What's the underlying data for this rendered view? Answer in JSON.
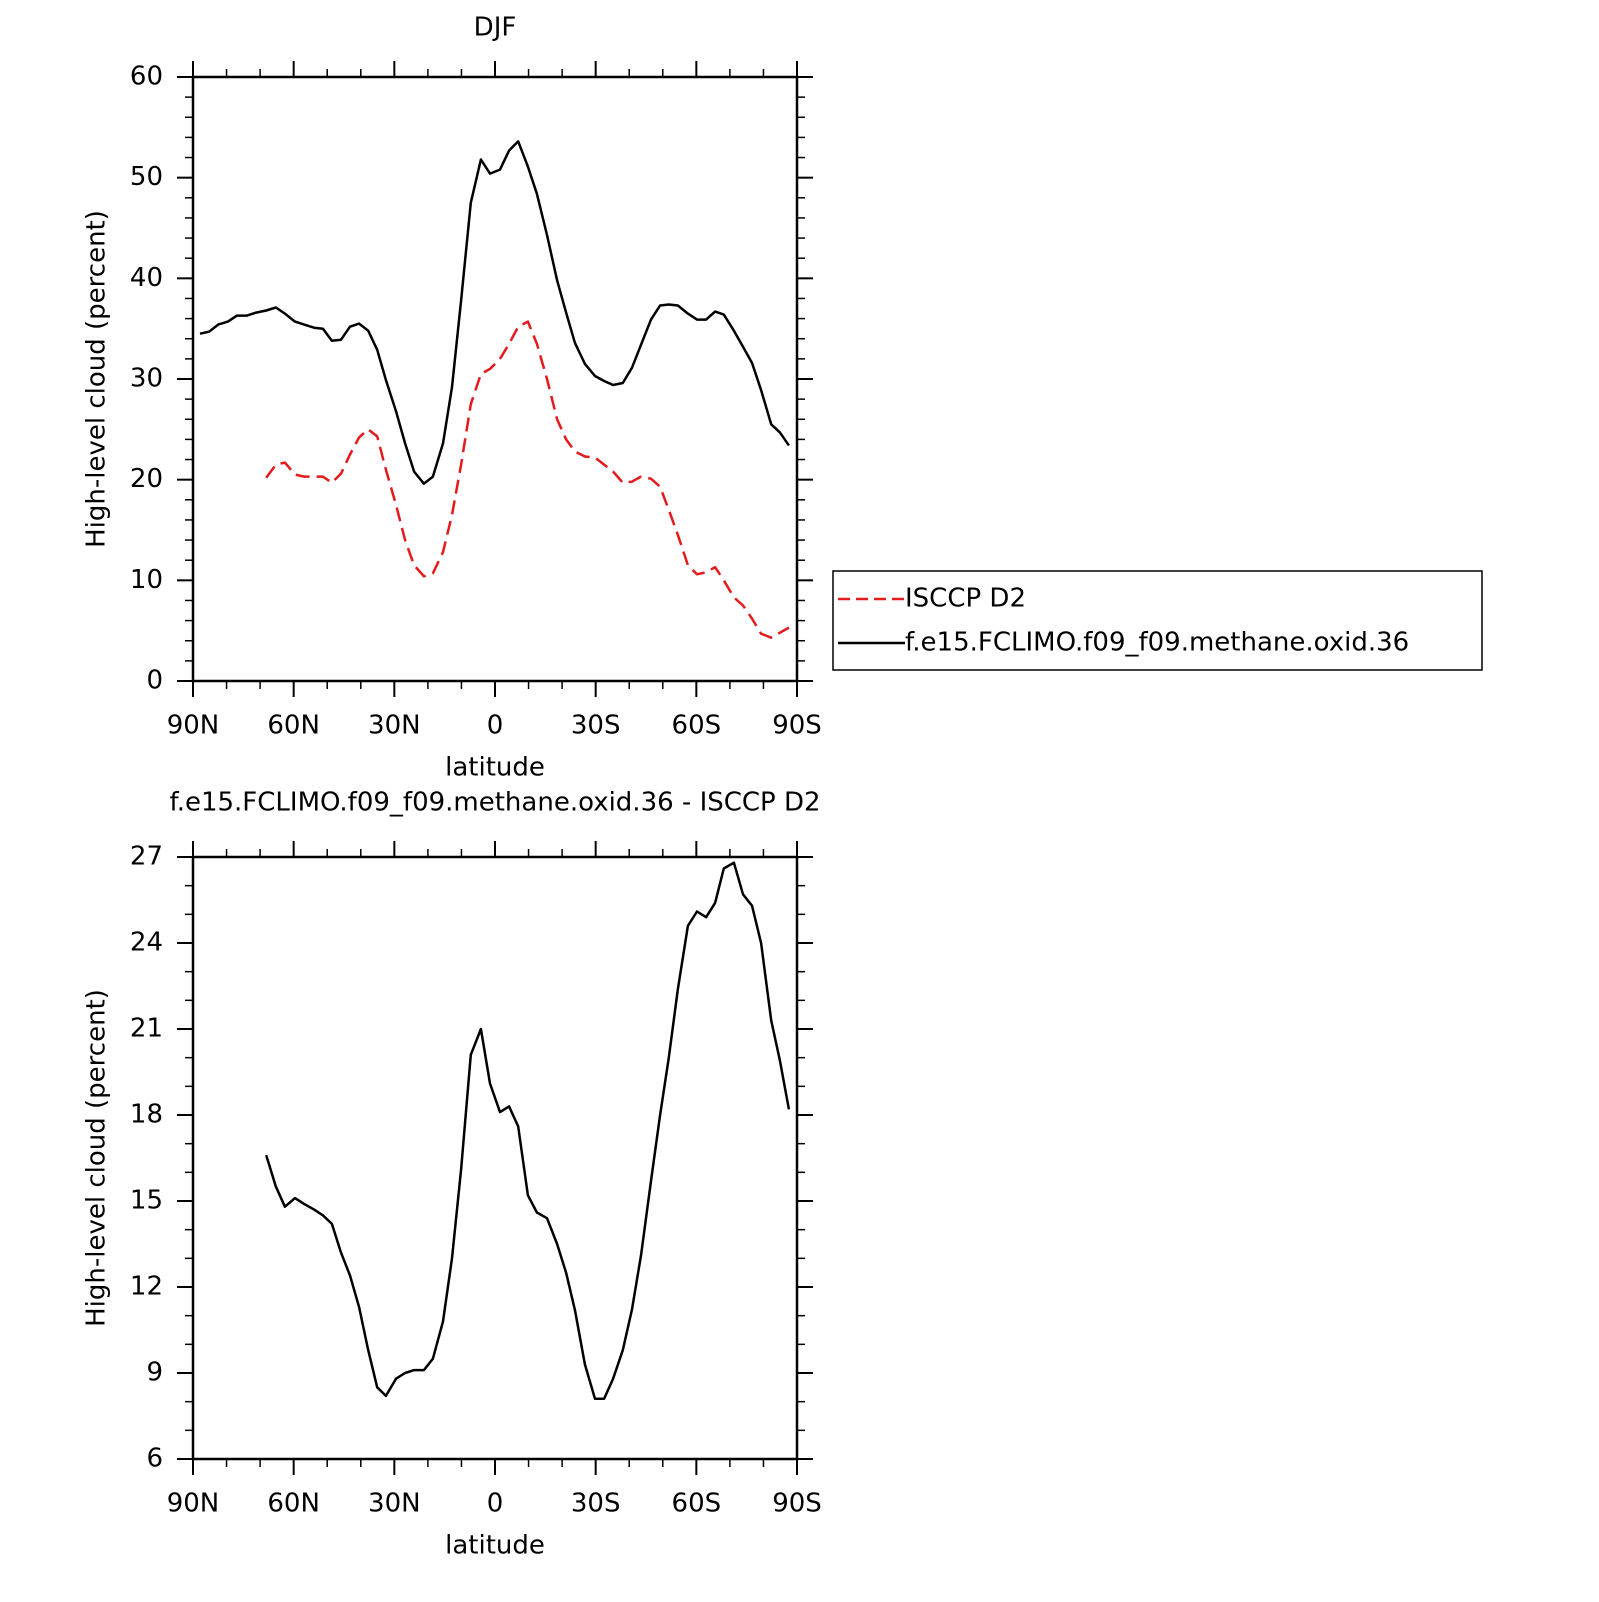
{
  "chart_data": [
    {
      "type": "line",
      "title": "DJF",
      "xlabel": "latitude",
      "ylabel": "High-level cloud (percent)",
      "x": [
        87.9,
        85.2,
        82.5,
        79.6,
        76.9,
        73.9,
        71.2,
        68.2,
        65.3,
        62.6,
        59.6,
        56.9,
        53.9,
        51.3,
        48.6,
        45.9,
        43.2,
        40.5,
        37.8,
        35.1,
        32.5,
        29.5,
        26.8,
        24.1,
        21.2,
        18.5,
        15.5,
        12.8,
        10.1,
        7.2,
        4.2,
        1.5,
        -1.5,
        -4.2,
        -6.9,
        -9.8,
        -12.5,
        -15.5,
        -18.5,
        -21.2,
        -23.8,
        -26.8,
        -29.8,
        -32.5,
        -35.2,
        -38.1,
        -40.8,
        -43.5,
        -46.5,
        -49.2,
        -51.8,
        -54.5,
        -57.5,
        -60.2,
        -62.9,
        -65.6,
        -68.2,
        -71.2,
        -73.9,
        -76.6,
        -79.3,
        -82.3,
        -84.9,
        -87.6
      ],
      "series": [
        {
          "name": "ISCCP D2",
          "color": "#e41a1c",
          "linestyle": "dashed",
          "values": [
            null,
            null,
            null,
            null,
            null,
            null,
            null,
            20.2,
            21.5,
            21.7,
            20.5,
            20.3,
            20.3,
            20.3,
            19.7,
            20.6,
            22.5,
            24.2,
            25.0,
            24.3,
            21.0,
            17.5,
            14.0,
            11.5,
            10.4,
            10.7,
            12.8,
            16.5,
            21.5,
            27.5,
            30.5,
            31.0,
            32.0,
            33.5,
            35.2,
            35.7,
            33.5,
            30.0,
            26.0,
            24.0,
            22.8,
            22.3,
            22.2,
            21.5,
            20.8,
            19.7,
            19.8,
            20.3,
            20.1,
            19.3,
            17.0,
            14.5,
            11.5,
            10.6,
            10.8,
            11.3,
            10.0,
            8.3,
            7.5,
            6.2,
            4.7,
            4.3,
            4.8,
            5.3
          ]
        },
        {
          "name": "f.e15.FCLIMO.f09_f09.methane.oxid.36",
          "color": "#000000",
          "linestyle": "solid",
          "values": [
            34.5,
            34.7,
            35.4,
            35.7,
            36.3,
            36.3,
            36.6,
            36.8,
            37.1,
            36.5,
            35.7,
            35.4,
            35.1,
            35.0,
            33.8,
            33.9,
            35.2,
            35.5,
            34.8,
            32.9,
            29.9,
            26.8,
            23.6,
            20.8,
            19.6,
            20.3,
            23.6,
            29.2,
            37.8,
            47.5,
            51.8,
            50.4,
            50.8,
            52.7,
            53.6,
            51.1,
            48.4,
            44.3,
            39.8,
            36.6,
            33.6,
            31.5,
            30.3,
            29.8,
            29.4,
            29.6,
            31.1,
            33.4,
            35.9,
            37.3,
            37.4,
            37.3,
            36.5,
            35.9,
            35.9,
            36.7,
            36.4,
            34.8,
            33.2,
            31.6,
            28.9,
            25.5,
            24.7,
            23.4
          ]
        }
      ],
      "xlim": [
        90,
        -90
      ],
      "xticks": [
        {
          "value": 90,
          "label": "90N"
        },
        {
          "value": 60,
          "label": "60N"
        },
        {
          "value": 30,
          "label": "30N"
        },
        0,
        {
          "value": -30,
          "label": "30S"
        },
        {
          "value": -60,
          "label": "60S"
        },
        {
          "value": -90,
          "label": "90S"
        }
      ],
      "ylim": [
        0,
        60
      ],
      "yticks": [
        0,
        10,
        20,
        30,
        40,
        50,
        60
      ],
      "legend": "right"
    },
    {
      "type": "line",
      "title": "f.e15.FCLIMO.f09_f09.methane.oxid.36 - ISCCP D2",
      "xlabel": "latitude",
      "ylabel": "High-level cloud (percent)",
      "x": [
        68.2,
        65.3,
        62.6,
        59.6,
        56.9,
        53.9,
        51.3,
        48.6,
        45.9,
        43.2,
        40.5,
        37.8,
        35.1,
        32.5,
        29.5,
        26.8,
        24.1,
        21.2,
        18.5,
        15.5,
        12.8,
        10.1,
        7.2,
        4.2,
        1.5,
        -1.5,
        -4.2,
        -6.9,
        -9.8,
        -12.5,
        -15.5,
        -18.5,
        -21.2,
        -23.8,
        -26.8,
        -29.8,
        -32.5,
        -35.2,
        -38.1,
        -40.8,
        -43.5,
        -46.5,
        -49.2,
        -51.8,
        -54.5,
        -57.5,
        -60.2,
        -62.9,
        -65.6,
        -68.2,
        -71.2,
        -73.9,
        -76.6,
        -79.3,
        -82.3,
        -84.9,
        -87.6
      ],
      "color": "#000000",
      "values": [
        16.6,
        15.5,
        14.8,
        15.1,
        14.9,
        14.7,
        14.5,
        14.2,
        13.2,
        12.4,
        11.3,
        9.8,
        8.5,
        8.2,
        8.8,
        9.0,
        9.1,
        9.1,
        9.5,
        10.8,
        13.0,
        16.1,
        20.1,
        21.0,
        19.1,
        18.1,
        18.3,
        17.6,
        15.2,
        14.6,
        14.4,
        13.5,
        12.5,
        11.2,
        9.3,
        8.1,
        8.1,
        8.8,
        9.8,
        11.2,
        13.1,
        15.7,
        18.0,
        20.0,
        22.4,
        24.6,
        25.1,
        24.9,
        25.4,
        26.6,
        26.8,
        25.7,
        25.3,
        24.0,
        21.3,
        19.9,
        18.2
      ],
      "xlim": [
        90,
        -90
      ],
      "xticks": [
        {
          "value": 90,
          "label": "90N"
        },
        {
          "value": 60,
          "label": "60N"
        },
        {
          "value": 30,
          "label": "30N"
        },
        0,
        {
          "value": -30,
          "label": "30S"
        },
        {
          "value": -60,
          "label": "60S"
        },
        {
          "value": -90,
          "label": "90S"
        }
      ],
      "ylim": [
        6,
        27
      ],
      "yticks": [
        6,
        9,
        12,
        15,
        18,
        21,
        24,
        27
      ]
    }
  ]
}
